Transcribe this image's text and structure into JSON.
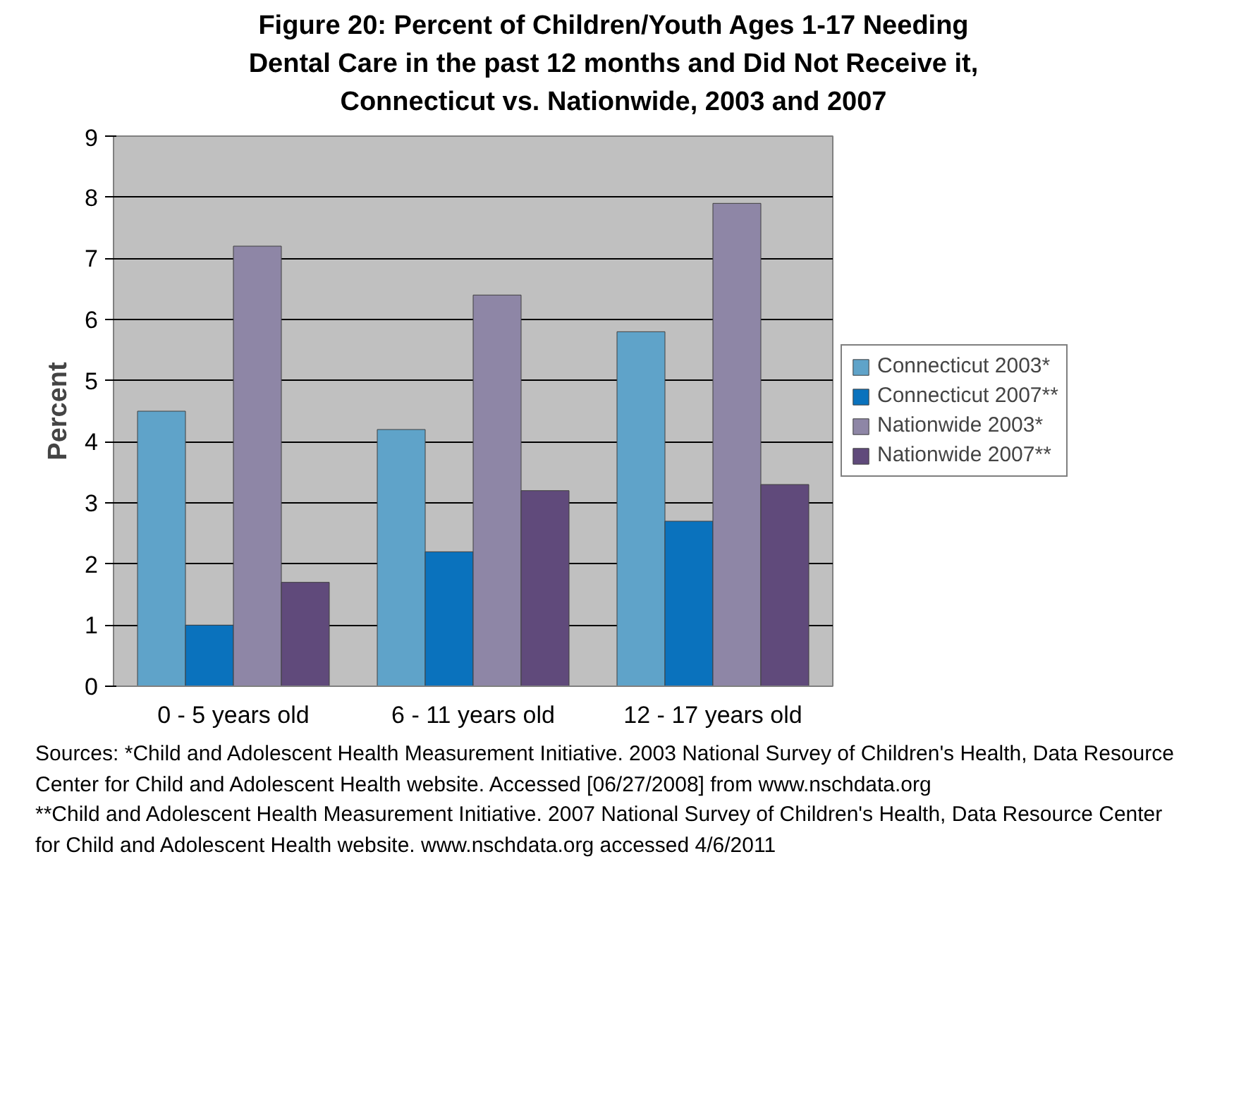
{
  "chart_data": {
    "type": "bar",
    "title": "Figure 20: Percent of Children/Youth Ages 1-17 Needing Dental Care in the past 12 months and Did Not Receive it, Connecticut vs. Nationwide, 2003 and 2007",
    "ylabel": "Percent",
    "categories": [
      "0 - 5 years old",
      "6 - 11 years old",
      "12 - 17 years old"
    ],
    "series": [
      {
        "name": "Connecticut 2003*",
        "color": "#5fa3c9",
        "values": [
          4.5,
          4.2,
          5.8
        ]
      },
      {
        "name": "Connecticut 2007**",
        "color": "#0a72bd",
        "values": [
          1.0,
          2.2,
          2.7
        ]
      },
      {
        "name": "Nationwide 2003*",
        "color": "#8e86a6",
        "values": [
          7.2,
          6.4,
          7.9
        ]
      },
      {
        "name": "Nationwide 2007**",
        "color": "#604a7b",
        "values": [
          1.7,
          3.2,
          3.3
        ]
      }
    ],
    "ylim": [
      0,
      9
    ],
    "yticks": [
      0,
      1,
      2,
      3,
      4,
      5,
      6,
      7,
      8,
      9
    ],
    "grid": "y",
    "legend": "right",
    "annotations": [
      "Sources: *Child and Adolescent Health Measurement Initiative. 2003 National Survey of Children's Health, Data Resource Center for Child and Adolescent Health website. Accessed [06/27/2008] from www.nschdata.org",
      "**Child and Adolescent Health Measurement Initiative. 2007 National Survey of Children's Health, Data Resource Center for Child and Adolescent Health website. www.nschdata.org accessed 4/6/2011"
    ]
  }
}
